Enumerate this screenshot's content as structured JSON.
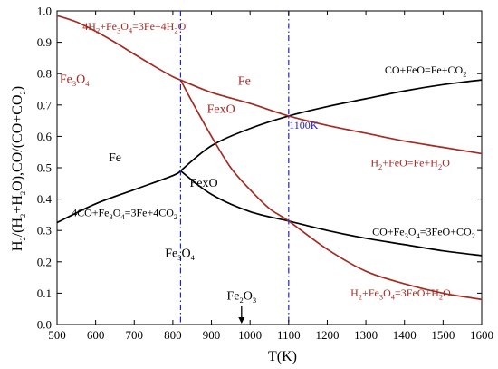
{
  "chart_data": {
    "type": "line",
    "xlabel": "T(K)",
    "ylabel": "H2/(H2+H2O),CO/(CO+CO2)",
    "xlim": [
      500,
      1600
    ],
    "ylim": [
      0,
      1.0
    ],
    "x_ticks": [
      500,
      600,
      700,
      800,
      900,
      1000,
      1100,
      1200,
      1300,
      1400,
      1500,
      1600
    ],
    "y_ticks": [
      0.0,
      0.1,
      0.2,
      0.3,
      0.4,
      0.5,
      0.6,
      0.7,
      0.8,
      0.9,
      1.0
    ],
    "grid": false,
    "colors": {
      "co_curves": "#000000",
      "h2_curves": "#a52a22",
      "vertical_lines": "#2222cc",
      "h2_labels": "#a52a22",
      "co_labels": "#000000",
      "vline_label": "#2222cc"
    },
    "series": [
      {
        "key": "co_feo_fe",
        "group": "co",
        "x": [
          820,
          900,
          1000,
          1100,
          1200,
          1300,
          1400,
          1500,
          1600
        ],
        "y": [
          0.49,
          0.57,
          0.625,
          0.665,
          0.695,
          0.72,
          0.745,
          0.765,
          0.78
        ]
      },
      {
        "key": "co_fe3o4_fe",
        "group": "co",
        "x": [
          500,
          600,
          700,
          800,
          820
        ],
        "y": [
          0.325,
          0.385,
          0.43,
          0.475,
          0.49
        ]
      },
      {
        "key": "co_fe3o4_feo",
        "group": "co",
        "x": [
          820,
          900,
          1000,
          1100,
          1200,
          1300,
          1400,
          1500,
          1600
        ],
        "y": [
          0.49,
          0.415,
          0.36,
          0.33,
          0.3,
          0.275,
          0.255,
          0.235,
          0.22
        ]
      },
      {
        "key": "h2_fe3o4_fe",
        "group": "h2",
        "x": [
          500,
          550,
          600,
          650,
          700,
          750,
          800,
          820
        ],
        "y": [
          0.985,
          0.965,
          0.935,
          0.9,
          0.862,
          0.825,
          0.79,
          0.78
        ]
      },
      {
        "key": "h2_feo_fe",
        "group": "h2",
        "x": [
          820,
          900,
          1000,
          1100,
          1200,
          1300,
          1400,
          1500,
          1600
        ],
        "y": [
          0.78,
          0.74,
          0.705,
          0.665,
          0.635,
          0.61,
          0.585,
          0.565,
          0.545
        ]
      },
      {
        "key": "h2_fe3o4_feo",
        "group": "h2",
        "x": [
          820,
          850,
          900,
          950,
          1000,
          1050,
          1100,
          1200,
          1300,
          1400,
          1500,
          1600
        ],
        "y": [
          0.78,
          0.71,
          0.6,
          0.5,
          0.43,
          0.37,
          0.33,
          0.24,
          0.17,
          0.13,
          0.1,
          0.08
        ]
      }
    ],
    "vertical_lines": [
      {
        "x": 820
      },
      {
        "x": 1100
      }
    ],
    "arrow": {
      "x": 978,
      "from_y": 0.06,
      "to_y": 0.0
    },
    "annotations": [
      {
        "key": "a_4h2",
        "x": 700,
        "y": 0.94,
        "group": "h2",
        "size": "ann",
        "parts": [
          [
            "4H"
          ],
          [
            "2",
            "sub"
          ],
          [
            "+Fe"
          ],
          [
            "3",
            "sub"
          ],
          [
            "O"
          ],
          [
            "4",
            "sub"
          ],
          [
            "=3Fe+4H"
          ],
          [
            "2",
            "sub"
          ],
          [
            "O"
          ]
        ]
      },
      {
        "key": "a_fe3o4_top",
        "x": 545,
        "y": 0.77,
        "group": "h2",
        "size": "ann-large",
        "parts": [
          [
            "Fe"
          ],
          [
            "3",
            "sub"
          ],
          [
            "O"
          ],
          [
            "4",
            "sub"
          ]
        ]
      },
      {
        "key": "a_fe_top",
        "x": 985,
        "y": 0.765,
        "group": "h2",
        "size": "ann-large",
        "parts": [
          [
            "Fe"
          ]
        ]
      },
      {
        "key": "a_fexo_red",
        "x": 925,
        "y": 0.675,
        "group": "h2",
        "size": "ann-large",
        "parts": [
          [
            "FexO"
          ]
        ]
      },
      {
        "key": "a_co_feo",
        "x": 1455,
        "y": 0.8,
        "group": "co",
        "size": "ann",
        "parts": [
          [
            "CO+FeO=Fe+CO"
          ],
          [
            "2",
            "sub"
          ]
        ]
      },
      {
        "key": "a_1100k",
        "x": 1101,
        "y": 0.625,
        "group": "vline",
        "size": "ann",
        "anchor": "start",
        "parts": [
          [
            "1100K"
          ]
        ]
      },
      {
        "key": "a_fe_mid",
        "x": 650,
        "y": 0.52,
        "group": "co",
        "size": "ann-large",
        "parts": [
          [
            "Fe"
          ]
        ]
      },
      {
        "key": "a_h2_feo",
        "x": 1415,
        "y": 0.505,
        "group": "h2",
        "size": "ann",
        "parts": [
          [
            "H"
          ],
          [
            "2",
            "sub"
          ],
          [
            "+FeO=Fe+H"
          ],
          [
            "2",
            "sub"
          ],
          [
            "O"
          ]
        ]
      },
      {
        "key": "a_fexo_black",
        "x": 880,
        "y": 0.44,
        "group": "co",
        "size": "ann-large",
        "parts": [
          [
            "FexO"
          ]
        ]
      },
      {
        "key": "a_4co",
        "x": 675,
        "y": 0.345,
        "group": "co",
        "size": "ann",
        "parts": [
          [
            "4CO+Fe"
          ],
          [
            "3",
            "sub"
          ],
          [
            "O"
          ],
          [
            "4",
            "sub"
          ],
          [
            "=3Fe+4CO"
          ],
          [
            "2",
            "sub"
          ]
        ]
      },
      {
        "key": "a_co_fe3o4",
        "x": 1450,
        "y": 0.285,
        "group": "co",
        "size": "ann",
        "parts": [
          [
            "CO+Fe"
          ],
          [
            "3",
            "sub"
          ],
          [
            "O"
          ],
          [
            "4",
            "sub"
          ],
          [
            "=3FeO+CO"
          ],
          [
            "2",
            "sub"
          ]
        ]
      },
      {
        "key": "a_fe3o4_bottom",
        "x": 818,
        "y": 0.215,
        "group": "co",
        "size": "ann-large",
        "parts": [
          [
            "Fe"
          ],
          [
            "3",
            "sub"
          ],
          [
            "O"
          ],
          [
            "4",
            "sub"
          ]
        ]
      },
      {
        "key": "a_fe2o3",
        "x": 978,
        "y": 0.08,
        "group": "co",
        "size": "ann-large",
        "parts": [
          [
            "Fe"
          ],
          [
            "2",
            "sub"
          ],
          [
            "O"
          ],
          [
            "3",
            "sub"
          ]
        ]
      },
      {
        "key": "a_h2_fe3o4",
        "x": 1390,
        "y": 0.09,
        "group": "h2",
        "size": "ann",
        "parts": [
          [
            "H"
          ],
          [
            "2",
            "sub"
          ],
          [
            "+Fe"
          ],
          [
            "3",
            "sub"
          ],
          [
            "O"
          ],
          [
            "4",
            "sub"
          ],
          [
            "=3FeO+H"
          ],
          [
            "2",
            "sub"
          ],
          [
            "O"
          ]
        ]
      }
    ]
  }
}
